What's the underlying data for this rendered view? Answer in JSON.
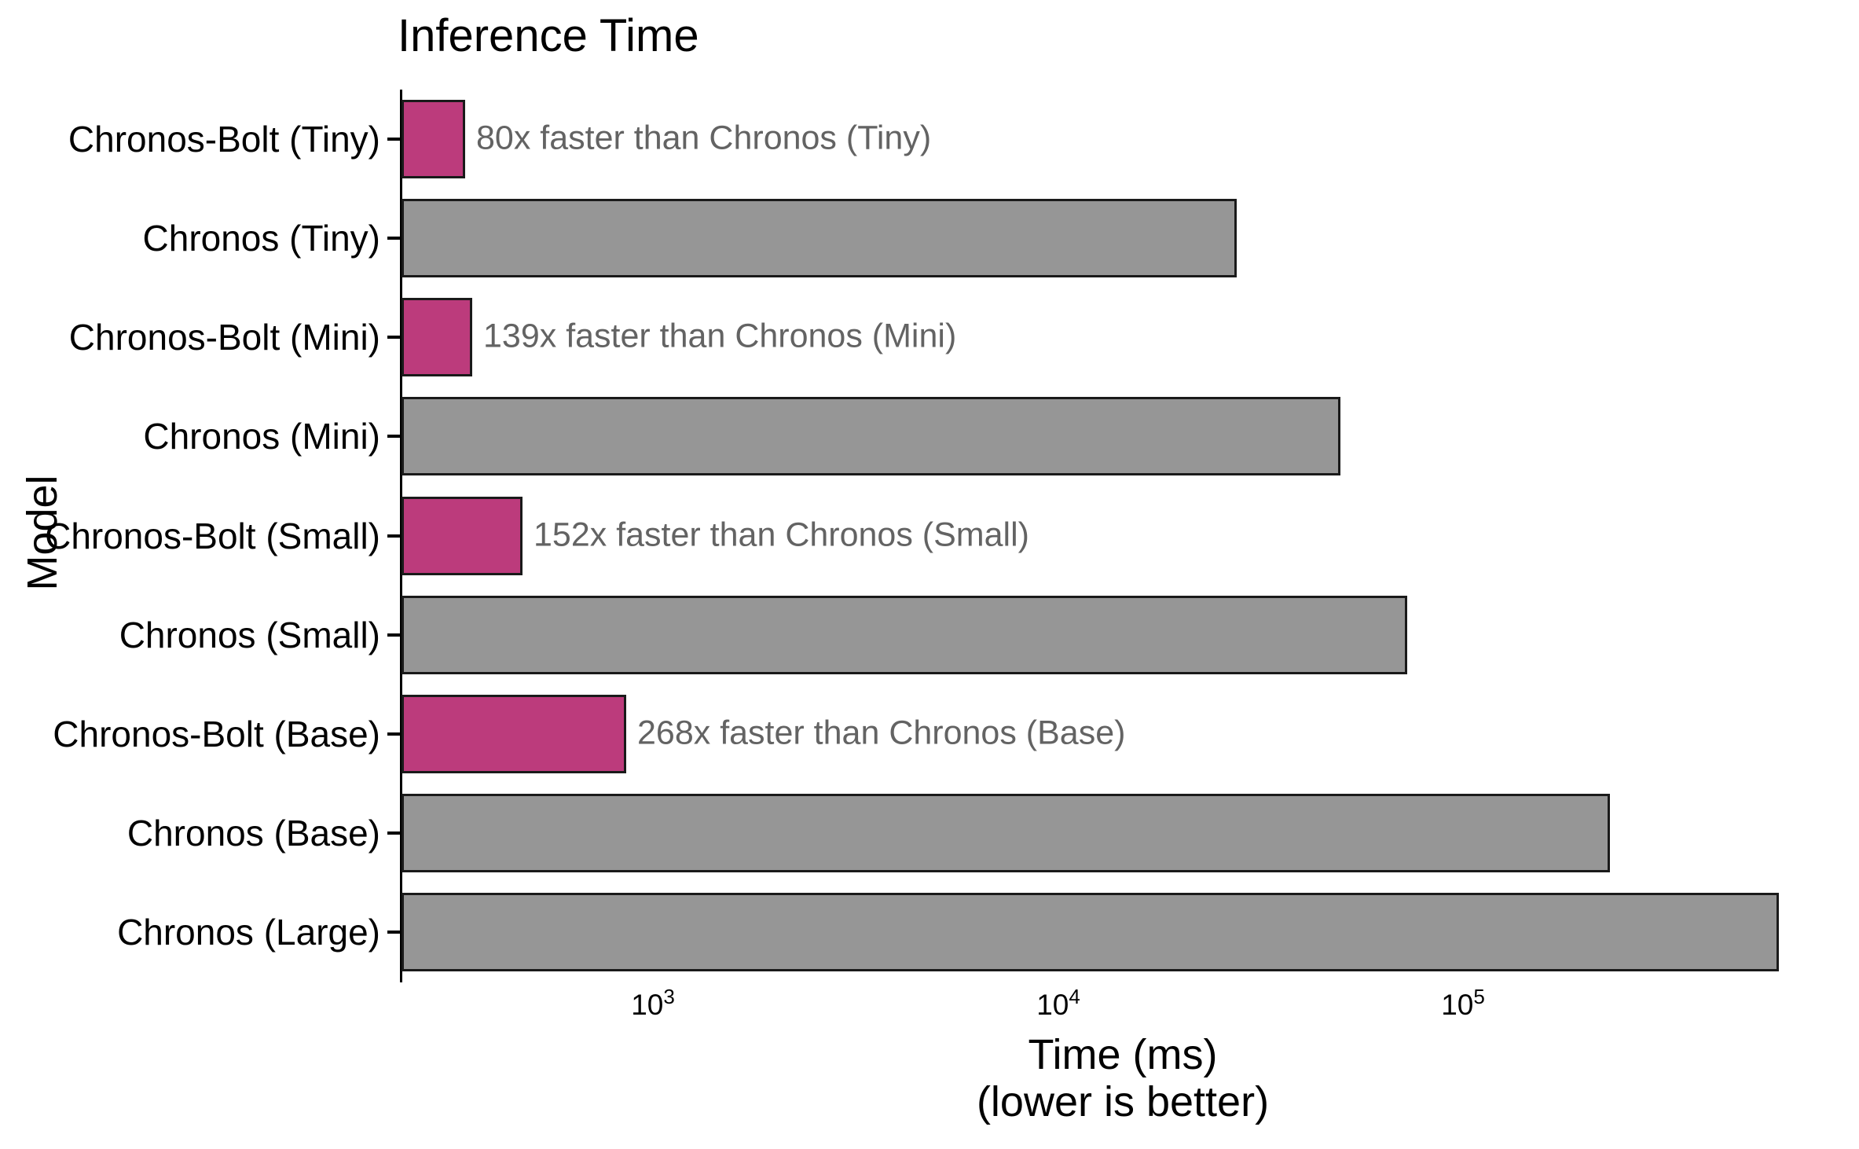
{
  "chart_data": {
    "type": "bar",
    "orientation": "horizontal",
    "title": "Inference Time",
    "ylabel": "Model",
    "xlabel": "Time (ms)",
    "xlabel_note": "(lower is better)",
    "x_scale": "log",
    "xlim_ms": [
      240,
      870000
    ],
    "grid": false,
    "legend": false,
    "x_ticks": [
      {
        "mantissa": "10",
        "exponent": "3",
        "value": 1000
      },
      {
        "mantissa": "10",
        "exponent": "4",
        "value": 10000
      },
      {
        "mantissa": "10",
        "exponent": "5",
        "value": 100000
      }
    ],
    "rows": [
      {
        "label": "Chronos-Bolt (Tiny)",
        "value_ms": 345,
        "series": "chronos-bolt",
        "annotation": "80x faster than Chronos (Tiny)"
      },
      {
        "label": "Chronos (Tiny)",
        "value_ms": 27600,
        "series": "chronos"
      },
      {
        "label": "Chronos-Bolt (Mini)",
        "value_ms": 358,
        "series": "chronos-bolt",
        "annotation": "139x faster than Chronos (Mini)"
      },
      {
        "label": "Chronos (Mini)",
        "value_ms": 49800,
        "series": "chronos"
      },
      {
        "label": "Chronos-Bolt (Small)",
        "value_ms": 478,
        "series": "chronos-bolt",
        "annotation": "152x faster than Chronos (Small)"
      },
      {
        "label": "Chronos (Small)",
        "value_ms": 72700,
        "series": "chronos"
      },
      {
        "label": "Chronos-Bolt (Base)",
        "value_ms": 860,
        "series": "chronos-bolt",
        "annotation": "268x faster than Chronos (Base)"
      },
      {
        "label": "Chronos (Base)",
        "value_ms": 230500,
        "series": "chronos"
      },
      {
        "label": "Chronos (Large)",
        "value_ms": 600000,
        "series": "chronos"
      }
    ],
    "colors": {
      "chronos_bolt_bar": "#BC3B7C",
      "chronos_bar": "#969696",
      "bar_edge": "#1A1A1A",
      "annotation_text": "#636363",
      "axis_text": "#000000"
    }
  }
}
